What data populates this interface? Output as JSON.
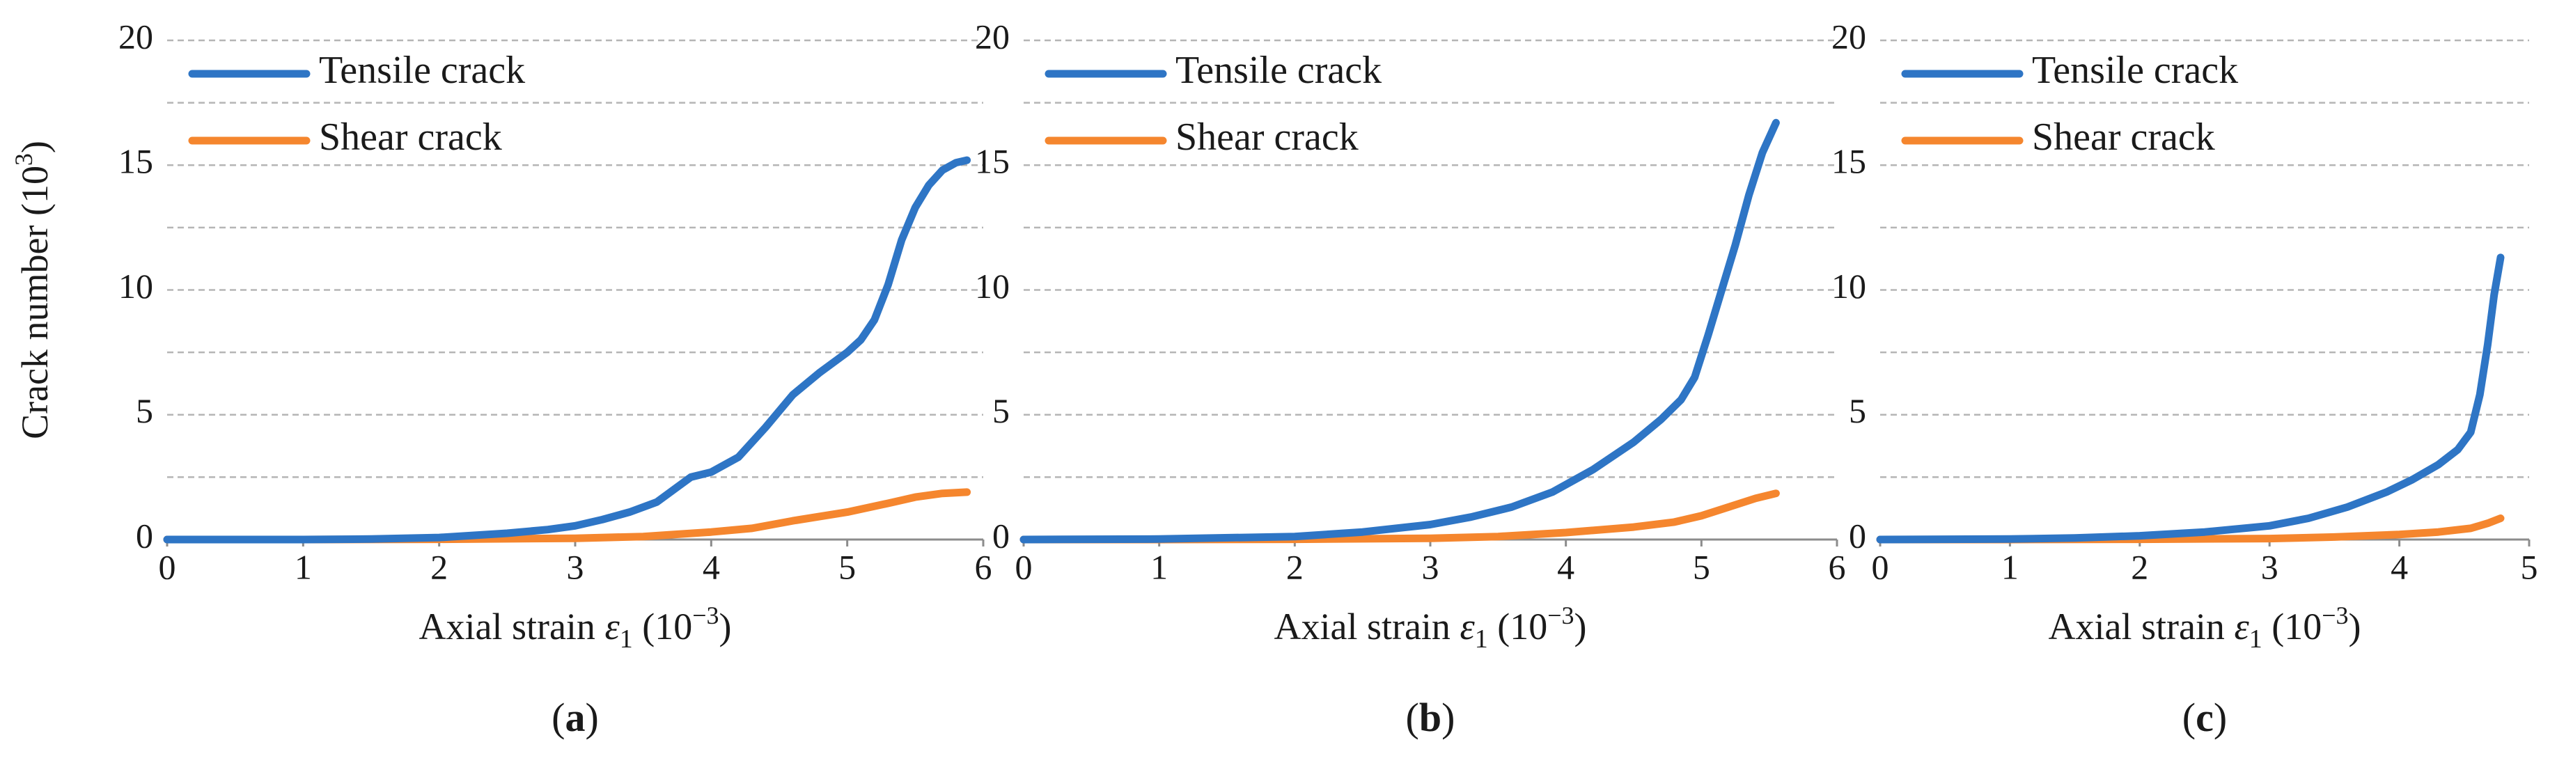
{
  "colors": {
    "tensile": "#2E75C5",
    "shear": "#F5862E",
    "grid": "#B5B5B5",
    "axis": "#8C8C8C"
  },
  "chart_data": [
    {
      "type": "line",
      "panel_label": "a",
      "xlabel": {
        "main": "Axial strain",
        "symbol": "ε",
        "subscript": "1",
        "units": "(10",
        "exponent": "−3",
        "close": ")"
      },
      "ylabel": {
        "main": "Crack number (10",
        "exponent": "3",
        "close": ")"
      },
      "xlim": [
        0,
        6
      ],
      "ylim": [
        0,
        20
      ],
      "xticks": [
        0,
        1,
        2,
        3,
        4,
        5,
        6
      ],
      "yticks": [
        0,
        5,
        10,
        15,
        20
      ],
      "gridlines": [
        2.5,
        5,
        7.5,
        10,
        12.5,
        15,
        17.5,
        20
      ],
      "legend": {
        "position": "top-left",
        "entries": [
          "Tensile crack",
          "Shear crack"
        ]
      },
      "series": [
        {
          "name": "Tensile crack",
          "color_key": "tensile",
          "x": [
            0,
            0.5,
            1.0,
            1.5,
            2.0,
            2.5,
            2.8,
            3.0,
            3.2,
            3.4,
            3.6,
            3.75,
            3.85,
            4.0,
            4.2,
            4.4,
            4.6,
            4.8,
            5.0,
            5.1,
            5.2,
            5.3,
            5.4,
            5.5,
            5.6,
            5.7,
            5.8,
            5.88
          ],
          "y": [
            0,
            0,
            0,
            0.02,
            0.08,
            0.25,
            0.4,
            0.55,
            0.8,
            1.1,
            1.5,
            2.1,
            2.5,
            2.7,
            3.3,
            4.5,
            5.8,
            6.7,
            7.5,
            8.0,
            8.8,
            10.2,
            12.0,
            13.3,
            14.2,
            14.8,
            15.1,
            15.2
          ]
        },
        {
          "name": "Shear crack",
          "color_key": "shear",
          "x": [
            0,
            1.0,
            2.0,
            3.0,
            3.5,
            4.0,
            4.3,
            4.6,
            5.0,
            5.3,
            5.5,
            5.7,
            5.88
          ],
          "y": [
            0,
            0,
            0.01,
            0.05,
            0.12,
            0.3,
            0.45,
            0.75,
            1.1,
            1.45,
            1.7,
            1.85,
            1.9
          ]
        }
      ]
    },
    {
      "type": "line",
      "panel_label": "b",
      "xlabel": {
        "main": "Axial strain",
        "symbol": "ε",
        "subscript": "1",
        "units": "(10",
        "exponent": "−3",
        "close": ")"
      },
      "ylabel": null,
      "xlim": [
        0,
        6
      ],
      "ylim": [
        0,
        20
      ],
      "xticks": [
        0,
        1,
        2,
        3,
        4,
        5,
        6
      ],
      "yticks": [
        0,
        5,
        10,
        15,
        20
      ],
      "gridlines": [
        2.5,
        5,
        7.5,
        10,
        12.5,
        15,
        17.5,
        20
      ],
      "legend": {
        "position": "top-left",
        "entries": [
          "Tensile crack",
          "Shear crack"
        ]
      },
      "series": [
        {
          "name": "Tensile crack",
          "color_key": "tensile",
          "x": [
            0,
            1.0,
            2.0,
            2.5,
            3.0,
            3.3,
            3.6,
            3.9,
            4.2,
            4.5,
            4.7,
            4.85,
            4.95,
            5.05,
            5.15,
            5.25,
            5.35,
            5.45,
            5.55
          ],
          "y": [
            0,
            0.02,
            0.12,
            0.3,
            0.6,
            0.9,
            1.3,
            1.9,
            2.8,
            3.9,
            4.8,
            5.6,
            6.5,
            8.2,
            10.0,
            11.8,
            13.8,
            15.5,
            16.7
          ]
        },
        {
          "name": "Shear crack",
          "color_key": "shear",
          "x": [
            0,
            1.0,
            2.0,
            3.0,
            3.5,
            4.0,
            4.5,
            4.8,
            5.0,
            5.2,
            5.4,
            5.55
          ],
          "y": [
            0,
            0,
            0.01,
            0.05,
            0.12,
            0.28,
            0.5,
            0.7,
            0.95,
            1.3,
            1.65,
            1.85
          ]
        }
      ]
    },
    {
      "type": "line",
      "panel_label": "c",
      "xlabel": {
        "main": "Axial strain",
        "symbol": "ε",
        "subscript": "1",
        "units": "(10",
        "exponent": "−3",
        "close": ")"
      },
      "ylabel": null,
      "xlim": [
        0,
        5
      ],
      "ylim": [
        0,
        20
      ],
      "xticks": [
        0,
        1,
        2,
        3,
        4,
        5
      ],
      "yticks": [
        0,
        5,
        10,
        15,
        20
      ],
      "gridlines": [
        2.5,
        5,
        7.5,
        10,
        12.5,
        15,
        17.5,
        20
      ],
      "legend": {
        "position": "top-left",
        "entries": [
          "Tensile crack",
          "Shear crack"
        ]
      },
      "series": [
        {
          "name": "Tensile crack",
          "color_key": "tensile",
          "x": [
            0,
            1.0,
            1.5,
            2.0,
            2.5,
            3.0,
            3.3,
            3.6,
            3.9,
            4.1,
            4.3,
            4.45,
            4.55,
            4.62,
            4.68,
            4.73,
            4.78
          ],
          "y": [
            0,
            0.02,
            0.06,
            0.15,
            0.3,
            0.55,
            0.85,
            1.3,
            1.9,
            2.4,
            3.0,
            3.6,
            4.3,
            5.8,
            7.8,
            9.8,
            11.3
          ]
        },
        {
          "name": "Shear crack",
          "color_key": "shear",
          "x": [
            0,
            1.0,
            2.0,
            3.0,
            3.5,
            4.0,
            4.3,
            4.55,
            4.68,
            4.78
          ],
          "y": [
            0,
            0,
            0.01,
            0.04,
            0.1,
            0.2,
            0.3,
            0.45,
            0.65,
            0.85
          ]
        }
      ]
    }
  ]
}
